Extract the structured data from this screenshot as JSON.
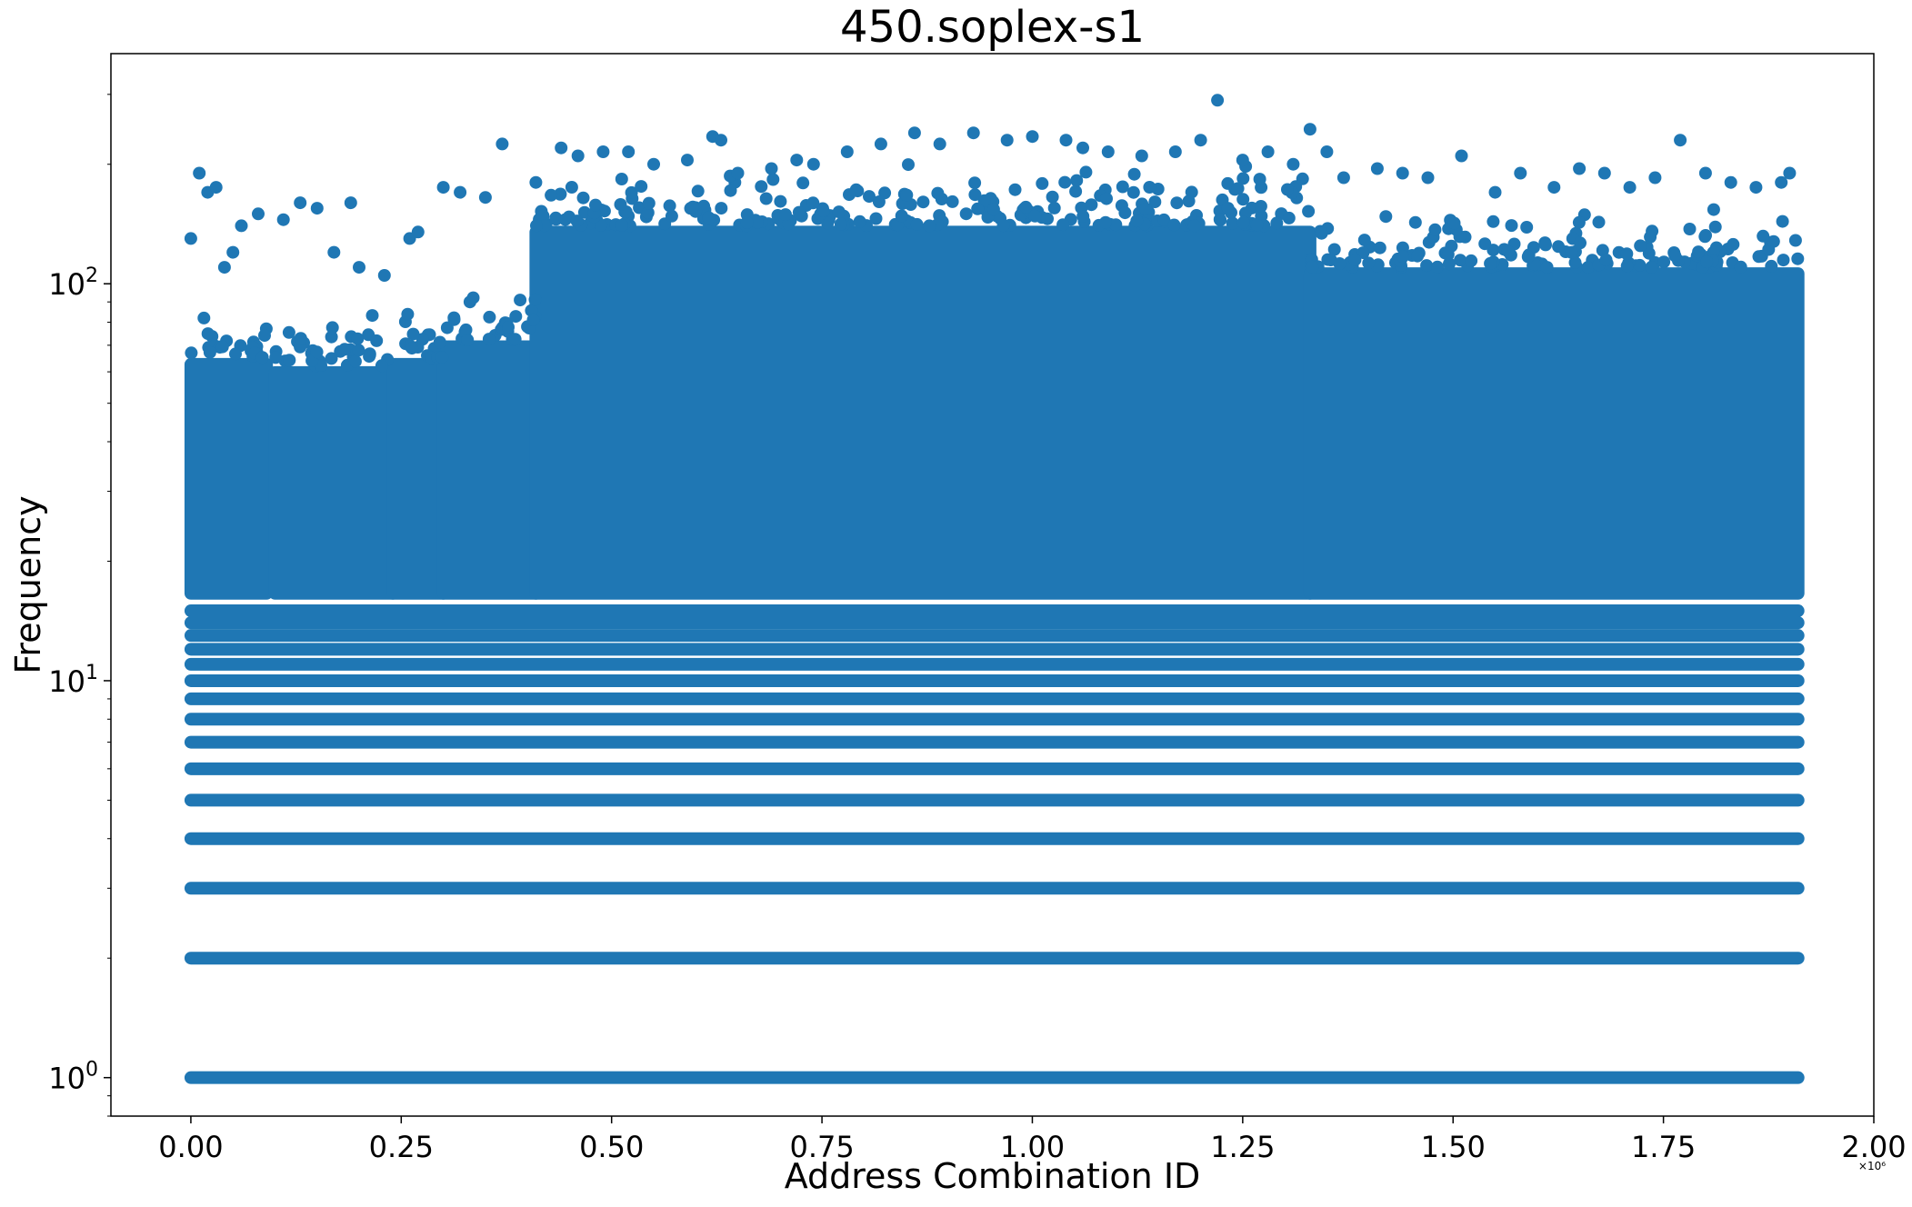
{
  "chart_data": {
    "type": "scatter",
    "title": "450.soplex-s1",
    "xlabel": "Address Combination ID",
    "ylabel": "Frequency",
    "x_scale_note": "×10⁶",
    "xlim": [
      -0.095,
      2.0
    ],
    "ylim": [
      0.8,
      380
    ],
    "yscale": "log",
    "grid": false,
    "legend": "none",
    "color": "#1f77b4",
    "x_ticks": [
      {
        "value": 0.0,
        "label": "0.00"
      },
      {
        "value": 0.25,
        "label": "0.25"
      },
      {
        "value": 0.5,
        "label": "0.50"
      },
      {
        "value": 0.75,
        "label": "0.75"
      },
      {
        "value": 1.0,
        "label": "1.00"
      },
      {
        "value": 1.25,
        "label": "1.25"
      },
      {
        "value": 1.5,
        "label": "1.50"
      },
      {
        "value": 1.75,
        "label": "1.75"
      },
      {
        "value": 2.0,
        "label": "2.00"
      }
    ],
    "y_ticks": [
      {
        "value": 1,
        "base": "10",
        "exp": "0"
      },
      {
        "value": 10,
        "base": "10",
        "exp": "1"
      },
      {
        "value": 100,
        "base": "10",
        "exp": "2"
      }
    ],
    "series": [
      {
        "x_range": [
          0.0,
          1.91
        ],
        "integer_levels": [
          1,
          2,
          3,
          4,
          5,
          6,
          7,
          8,
          9,
          10,
          11,
          12,
          13,
          14,
          15
        ],
        "dense_segments": [
          {
            "x": [
              0.0,
              0.09
            ],
            "y": [
              16,
              65
            ]
          },
          {
            "x": [
              0.1,
              0.24
            ],
            "y": [
              16,
              62
            ]
          },
          {
            "x": [
              0.24,
              0.3
            ],
            "y": [
              16,
              65
            ]
          },
          {
            "x": [
              0.3,
              0.41
            ],
            "y": [
              16,
              72
            ]
          },
          {
            "x": [
              0.41,
              1.33
            ],
            "y": [
              16,
              140
            ]
          },
          {
            "x": [
              1.33,
              1.91
            ],
            "y": [
              16,
              110
            ]
          }
        ],
        "outliers": [
          [
            0.0,
            130
          ],
          [
            0.01,
            190
          ],
          [
            0.02,
            170
          ],
          [
            0.03,
            175
          ],
          [
            0.04,
            110
          ],
          [
            0.05,
            120
          ],
          [
            0.06,
            140
          ],
          [
            0.08,
            150
          ],
          [
            0.11,
            145
          ],
          [
            0.13,
            160
          ],
          [
            0.15,
            155
          ],
          [
            0.17,
            120
          ],
          [
            0.19,
            160
          ],
          [
            0.2,
            110
          ],
          [
            0.23,
            105
          ],
          [
            0.26,
            130
          ],
          [
            0.27,
            135
          ],
          [
            0.3,
            175
          ],
          [
            0.32,
            170
          ],
          [
            0.35,
            165
          ],
          [
            0.37,
            225
          ],
          [
            0.41,
            180
          ],
          [
            0.44,
            220
          ],
          [
            0.46,
            210
          ],
          [
            0.49,
            215
          ],
          [
            0.52,
            215
          ],
          [
            0.55,
            200
          ],
          [
            0.59,
            205
          ],
          [
            0.62,
            235
          ],
          [
            0.63,
            230
          ],
          [
            0.65,
            190
          ],
          [
            0.69,
            195
          ],
          [
            0.72,
            205
          ],
          [
            0.74,
            200
          ],
          [
            0.78,
            215
          ],
          [
            0.82,
            225
          ],
          [
            0.86,
            240
          ],
          [
            0.89,
            225
          ],
          [
            0.93,
            240
          ],
          [
            0.97,
            230
          ],
          [
            1.0,
            235
          ],
          [
            1.04,
            230
          ],
          [
            1.06,
            220
          ],
          [
            1.09,
            215
          ],
          [
            1.13,
            210
          ],
          [
            1.17,
            215
          ],
          [
            1.2,
            230
          ],
          [
            1.22,
            290
          ],
          [
            1.25,
            205
          ],
          [
            1.28,
            215
          ],
          [
            1.31,
            200
          ],
          [
            1.33,
            245
          ],
          [
            1.35,
            215
          ],
          [
            1.37,
            185
          ],
          [
            1.41,
            195
          ],
          [
            1.44,
            190
          ],
          [
            1.47,
            185
          ],
          [
            1.51,
            210
          ],
          [
            1.55,
            170
          ],
          [
            1.58,
            190
          ],
          [
            1.62,
            175
          ],
          [
            1.65,
            195
          ],
          [
            1.68,
            190
          ],
          [
            1.71,
            175
          ],
          [
            1.74,
            185
          ],
          [
            1.77,
            230
          ],
          [
            1.8,
            190
          ],
          [
            1.83,
            180
          ],
          [
            1.86,
            175
          ],
          [
            1.89,
            180
          ],
          [
            1.9,
            190
          ]
        ]
      }
    ]
  }
}
